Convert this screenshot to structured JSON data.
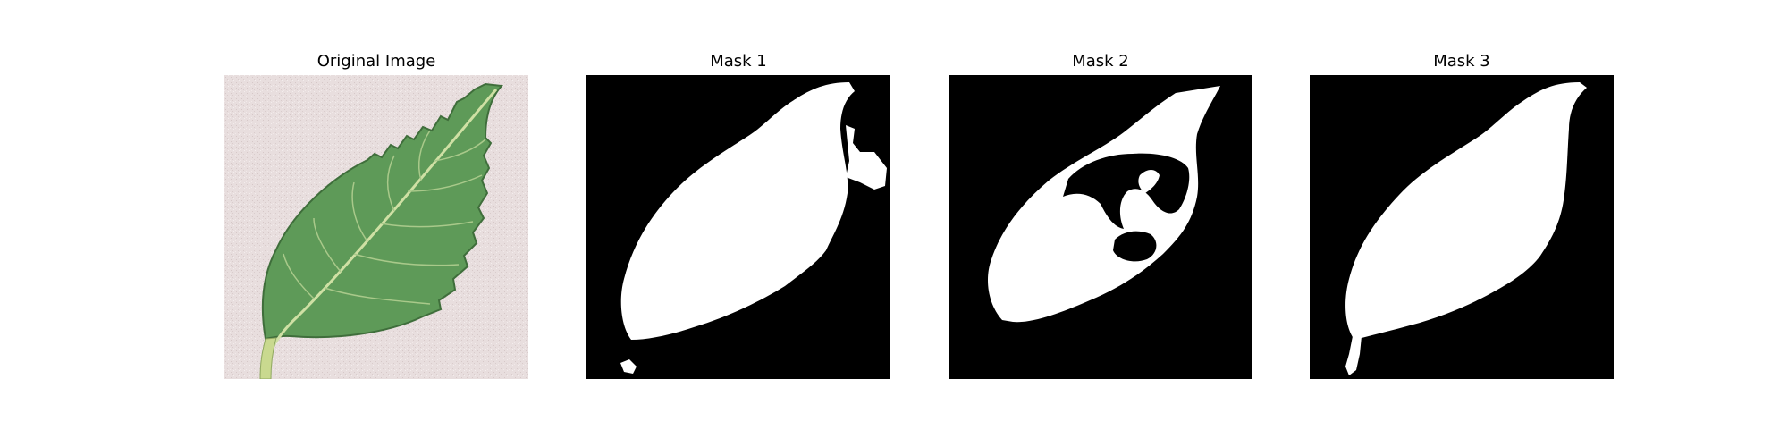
{
  "figure": {
    "panels": [
      {
        "title": "Original Image",
        "kind": "photo"
      },
      {
        "title": "Mask 1",
        "kind": "mask"
      },
      {
        "title": "Mask 2",
        "kind": "mask"
      },
      {
        "title": "Mask 3",
        "kind": "mask"
      }
    ]
  },
  "colors": {
    "background": "#e6dcdc",
    "leaf": "#5e9a58",
    "vein": "#cfe0a4",
    "mask_fg": "#ffffff",
    "mask_bg": "#000000"
  }
}
